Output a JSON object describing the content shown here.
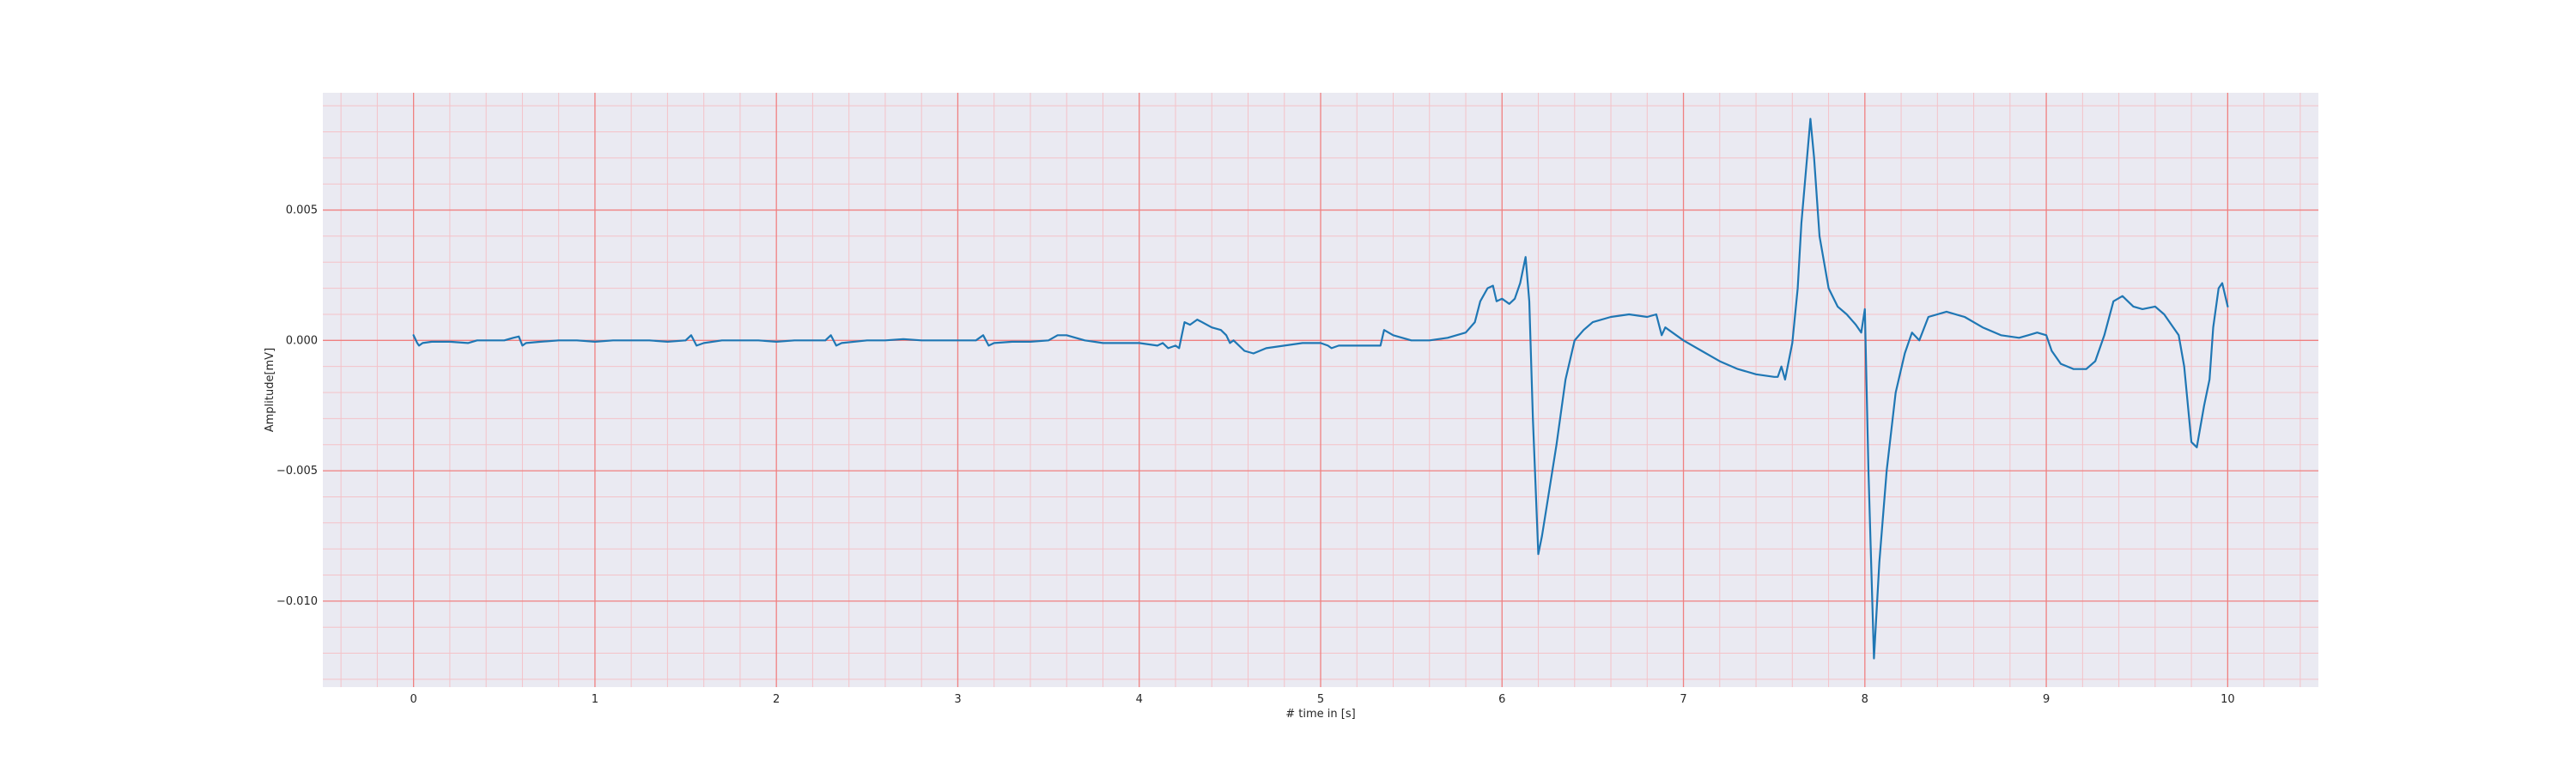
{
  "chart_data": {
    "type": "line",
    "title": "",
    "xlabel": "# time in [s]",
    "ylabel": "Amplitude[mV]",
    "xlim": [
      -0.5,
      10.5
    ],
    "ylim": [
      -0.0133,
      0.0095
    ],
    "x_ticks": [
      0,
      1,
      2,
      3,
      4,
      5,
      6,
      7,
      8,
      9,
      10
    ],
    "x_tick_labels": [
      "0",
      "1",
      "2",
      "3",
      "4",
      "5",
      "6",
      "7",
      "8",
      "9",
      "10"
    ],
    "y_ticks": [
      0.005,
      0.0,
      -0.005,
      -0.01
    ],
    "y_tick_labels": [
      "0.005",
      "0.000",
      "−0.005",
      "−0.010"
    ],
    "grid": true,
    "minor_grid": true,
    "colors": {
      "background": "#eaeaf2",
      "major_grid": "#f08080",
      "minor_grid": "#f4c2c8",
      "line": "#1f77b4"
    },
    "series": [
      {
        "points": [
          [
            0.0,
            0.0002
          ],
          [
            0.02,
            -0.0001
          ],
          [
            0.03,
            -0.0002
          ],
          [
            0.05,
            -0.0001
          ],
          [
            0.1,
            -5e-05
          ],
          [
            0.2,
            -5e-05
          ],
          [
            0.3,
            -0.0001
          ],
          [
            0.35,
            0.0
          ],
          [
            0.45,
            0.0
          ],
          [
            0.5,
            0.0
          ],
          [
            0.55,
            0.0001
          ],
          [
            0.58,
            0.00015
          ],
          [
            0.6,
            -0.0002
          ],
          [
            0.62,
            -0.0001
          ],
          [
            0.7,
            -5e-05
          ],
          [
            0.8,
            0.0
          ],
          [
            0.9,
            0.0
          ],
          [
            1.0,
            -5e-05
          ],
          [
            1.1,
            0.0
          ],
          [
            1.2,
            0.0
          ],
          [
            1.3,
            0.0
          ],
          [
            1.4,
            -5e-05
          ],
          [
            1.5,
            0.0
          ],
          [
            1.53,
            0.0002
          ],
          [
            1.56,
            -0.0002
          ],
          [
            1.6,
            -0.0001
          ],
          [
            1.7,
            0.0
          ],
          [
            1.8,
            0.0
          ],
          [
            1.9,
            0.0
          ],
          [
            2.0,
            -5e-05
          ],
          [
            2.1,
            0.0
          ],
          [
            2.2,
            0.0
          ],
          [
            2.27,
            0.0
          ],
          [
            2.3,
            0.0002
          ],
          [
            2.33,
            -0.0002
          ],
          [
            2.36,
            -0.0001
          ],
          [
            2.5,
            0.0
          ],
          [
            2.6,
            0.0
          ],
          [
            2.7,
            5e-05
          ],
          [
            2.8,
            0.0
          ],
          [
            2.9,
            0.0
          ],
          [
            3.0,
            0.0
          ],
          [
            3.1,
            0.0
          ],
          [
            3.14,
            0.0002
          ],
          [
            3.17,
            -0.0002
          ],
          [
            3.2,
            -0.0001
          ],
          [
            3.3,
            -5e-05
          ],
          [
            3.4,
            -5e-05
          ],
          [
            3.5,
            0.0
          ],
          [
            3.55,
            0.0002
          ],
          [
            3.6,
            0.0002
          ],
          [
            3.7,
            0.0
          ],
          [
            3.8,
            -0.0001
          ],
          [
            3.9,
            -0.0001
          ],
          [
            4.0,
            -0.0001
          ],
          [
            4.1,
            -0.0002
          ],
          [
            4.13,
            -0.0001
          ],
          [
            4.16,
            -0.0003
          ],
          [
            4.2,
            -0.0002
          ],
          [
            4.22,
            -0.0003
          ],
          [
            4.25,
            0.0007
          ],
          [
            4.28,
            0.0006
          ],
          [
            4.32,
            0.0008
          ],
          [
            4.4,
            0.0005
          ],
          [
            4.45,
            0.0004
          ],
          [
            4.48,
            0.0002
          ],
          [
            4.5,
            -0.0001
          ],
          [
            4.52,
            0.0
          ],
          [
            4.58,
            -0.0004
          ],
          [
            4.63,
            -0.0005
          ],
          [
            4.7,
            -0.0003
          ],
          [
            4.8,
            -0.0002
          ],
          [
            4.9,
            -0.0001
          ],
          [
            5.0,
            -0.0001
          ],
          [
            5.04,
            -0.0002
          ],
          [
            5.06,
            -0.0003
          ],
          [
            5.1,
            -0.0002
          ],
          [
            5.2,
            -0.0002
          ],
          [
            5.3,
            -0.0002
          ],
          [
            5.33,
            -0.0002
          ],
          [
            5.35,
            0.0004
          ],
          [
            5.4,
            0.0002
          ],
          [
            5.5,
            0.0
          ],
          [
            5.6,
            0.0
          ],
          [
            5.7,
            0.0001
          ],
          [
            5.8,
            0.0003
          ],
          [
            5.85,
            0.0007
          ],
          [
            5.88,
            0.0015
          ],
          [
            5.92,
            0.002
          ],
          [
            5.95,
            0.0021
          ],
          [
            5.97,
            0.0015
          ],
          [
            6.0,
            0.0016
          ],
          [
            6.04,
            0.0014
          ],
          [
            6.07,
            0.0016
          ],
          [
            6.1,
            0.0022
          ],
          [
            6.13,
            0.0032
          ],
          [
            6.15,
            0.0015
          ],
          [
            6.17,
            -0.003
          ],
          [
            6.2,
            -0.0082
          ],
          [
            6.22,
            -0.0075
          ],
          [
            6.25,
            -0.0062
          ],
          [
            6.3,
            -0.004
          ],
          [
            6.35,
            -0.0015
          ],
          [
            6.4,
            0.0
          ],
          [
            6.45,
            0.0004
          ],
          [
            6.5,
            0.0007
          ],
          [
            6.6,
            0.0009
          ],
          [
            6.7,
            0.001
          ],
          [
            6.8,
            0.0009
          ],
          [
            6.85,
            0.001
          ],
          [
            6.88,
            0.0002
          ],
          [
            6.9,
            0.0005
          ],
          [
            7.0,
            0.0
          ],
          [
            7.1,
            -0.0004
          ],
          [
            7.2,
            -0.0008
          ],
          [
            7.3,
            -0.0011
          ],
          [
            7.4,
            -0.0013
          ],
          [
            7.5,
            -0.0014
          ],
          [
            7.52,
            -0.0014
          ],
          [
            7.54,
            -0.001
          ],
          [
            7.56,
            -0.0015
          ],
          [
            7.6,
            -0.0001
          ],
          [
            7.63,
            0.002
          ],
          [
            7.65,
            0.0045
          ],
          [
            7.7,
            0.0085
          ],
          [
            7.72,
            0.007
          ],
          [
            7.75,
            0.004
          ],
          [
            7.8,
            0.002
          ],
          [
            7.85,
            0.0013
          ],
          [
            7.9,
            0.001
          ],
          [
            7.95,
            0.0006
          ],
          [
            7.98,
            0.0003
          ],
          [
            8.0,
            0.0012
          ],
          [
            8.02,
            -0.005
          ],
          [
            8.05,
            -0.0122
          ],
          [
            8.08,
            -0.0085
          ],
          [
            8.12,
            -0.005
          ],
          [
            8.17,
            -0.002
          ],
          [
            8.22,
            -0.0005
          ],
          [
            8.26,
            0.0003
          ],
          [
            8.3,
            0.0
          ],
          [
            8.35,
            0.0009
          ],
          [
            8.45,
            0.0011
          ],
          [
            8.55,
            0.0009
          ],
          [
            8.65,
            0.0005
          ],
          [
            8.75,
            0.0002
          ],
          [
            8.85,
            0.0001
          ],
          [
            8.9,
            0.0002
          ],
          [
            8.95,
            0.0003
          ],
          [
            9.0,
            0.0002
          ],
          [
            9.03,
            -0.0004
          ],
          [
            9.08,
            -0.0009
          ],
          [
            9.15,
            -0.0011
          ],
          [
            9.22,
            -0.0011
          ],
          [
            9.27,
            -0.0008
          ],
          [
            9.32,
            0.0002
          ],
          [
            9.37,
            0.0015
          ],
          [
            9.42,
            0.0017
          ],
          [
            9.48,
            0.0013
          ],
          [
            9.53,
            0.0012
          ],
          [
            9.6,
            0.0013
          ],
          [
            9.65,
            0.001
          ],
          [
            9.7,
            0.0005
          ],
          [
            9.73,
            0.0002
          ],
          [
            9.76,
            -0.001
          ],
          [
            9.8,
            -0.0039
          ],
          [
            9.83,
            -0.0041
          ],
          [
            9.87,
            -0.0025
          ],
          [
            9.9,
            -0.0015
          ],
          [
            9.92,
            0.0005
          ],
          [
            9.95,
            0.002
          ],
          [
            9.97,
            0.0022
          ],
          [
            10.0,
            0.0013
          ]
        ]
      }
    ]
  }
}
